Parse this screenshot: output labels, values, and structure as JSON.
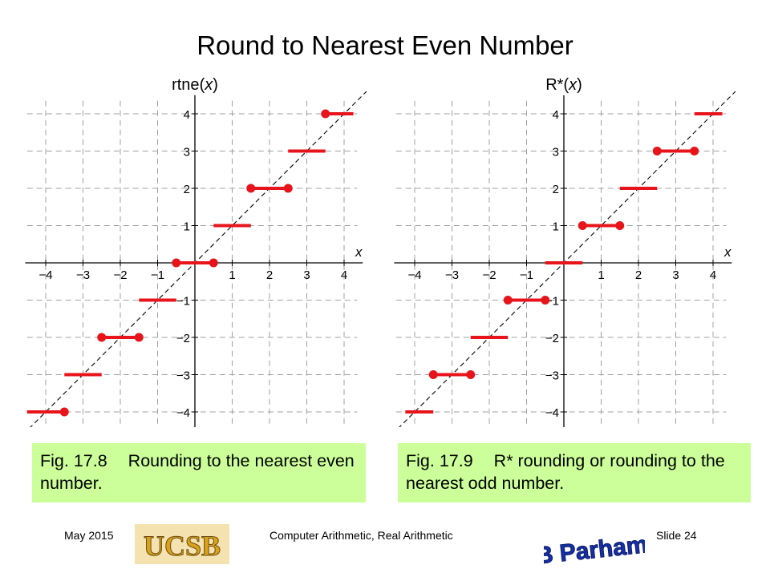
{
  "slide": {
    "title": "Round to Nearest Even Number",
    "footer_date": "May 2015",
    "footer_course": "Computer Arithmetic, Real Arithmetic",
    "footer_slide": "Slide 24",
    "logo_ucsb_text": "UCSB",
    "logo_author_text": "B Parhami"
  },
  "figures": [
    {
      "caption_num": "Fig. 17.8",
      "caption_text": "Rounding to the nearest even number.",
      "chart_data": {
        "type": "line",
        "function_label": "rtne",
        "arg_label": "x",
        "x_axis_label": "x",
        "xlim": [
          -4.5,
          4.5
        ],
        "ylim": [
          -4.5,
          4.5
        ],
        "x_ticks": [
          "−4",
          "−3",
          "−2",
          "−1",
          "1",
          "2",
          "3",
          "4"
        ],
        "y_ticks": [
          "4",
          "3",
          "2",
          "1",
          "−1",
          "−2",
          "−3",
          "−4"
        ],
        "grid": true,
        "diagonal_reference": "y = x",
        "steps": [
          {
            "y": -4,
            "x_from": -4.5,
            "x_to": -3.5,
            "closed_left": false,
            "closed_right": true
          },
          {
            "y": -3,
            "x_from": -3.5,
            "x_to": -2.5,
            "closed_left": false,
            "closed_right": false
          },
          {
            "y": -2,
            "x_from": -2.5,
            "x_to": -1.5,
            "closed_left": true,
            "closed_right": true
          },
          {
            "y": -1,
            "x_from": -1.5,
            "x_to": -0.5,
            "closed_left": false,
            "closed_right": false
          },
          {
            "y": 0,
            "x_from": -0.5,
            "x_to": 0.5,
            "closed_left": true,
            "closed_right": true
          },
          {
            "y": 1,
            "x_from": 0.5,
            "x_to": 1.5,
            "closed_left": false,
            "closed_right": false
          },
          {
            "y": 2,
            "x_from": 1.5,
            "x_to": 2.5,
            "closed_left": true,
            "closed_right": true
          },
          {
            "y": 3,
            "x_from": 2.5,
            "x_to": 3.5,
            "closed_left": false,
            "closed_right": false
          },
          {
            "y": 4,
            "x_from": 3.5,
            "x_to": 4.25,
            "closed_left": true,
            "closed_right": false
          }
        ]
      }
    },
    {
      "caption_num": "Fig. 17.9",
      "caption_text": "R* rounding or rounding to the nearest odd number.",
      "chart_data": {
        "type": "line",
        "function_label": "R*",
        "arg_label": "x",
        "x_axis_label": "x",
        "xlim": [
          -4.5,
          4.5
        ],
        "ylim": [
          -4.5,
          4.5
        ],
        "x_ticks": [
          "−4",
          "−3",
          "−2",
          "−1",
          "1",
          "2",
          "3",
          "4"
        ],
        "y_ticks": [
          "4",
          "3",
          "2",
          "1",
          "−1",
          "−2",
          "−3",
          "−4"
        ],
        "grid": true,
        "diagonal_reference": "y = x",
        "steps": [
          {
            "y": -4,
            "x_from": -4.25,
            "x_to": -3.5,
            "closed_left": false,
            "closed_right": false
          },
          {
            "y": -3,
            "x_from": -3.5,
            "x_to": -2.5,
            "closed_left": true,
            "closed_right": true
          },
          {
            "y": -2,
            "x_from": -2.5,
            "x_to": -1.5,
            "closed_left": false,
            "closed_right": false
          },
          {
            "y": -1,
            "x_from": -1.5,
            "x_to": -0.5,
            "closed_left": true,
            "closed_right": true
          },
          {
            "y": 0,
            "x_from": -0.5,
            "x_to": 0.5,
            "closed_left": false,
            "closed_right": false
          },
          {
            "y": 1,
            "x_from": 0.5,
            "x_to": 1.5,
            "closed_left": true,
            "closed_right": true
          },
          {
            "y": 2,
            "x_from": 1.5,
            "x_to": 2.5,
            "closed_left": false,
            "closed_right": false
          },
          {
            "y": 3,
            "x_from": 2.5,
            "x_to": 3.5,
            "closed_left": true,
            "closed_right": true
          },
          {
            "y": 4,
            "x_from": 3.5,
            "x_to": 4.25,
            "closed_left": false,
            "closed_right": false
          }
        ]
      }
    }
  ],
  "colors": {
    "step": "#e8141b",
    "grid": "#a0a0a0",
    "caption_bg": "#ccff99",
    "ucsb_gold": "#d9a21a",
    "author_blue": "#1530a8"
  }
}
